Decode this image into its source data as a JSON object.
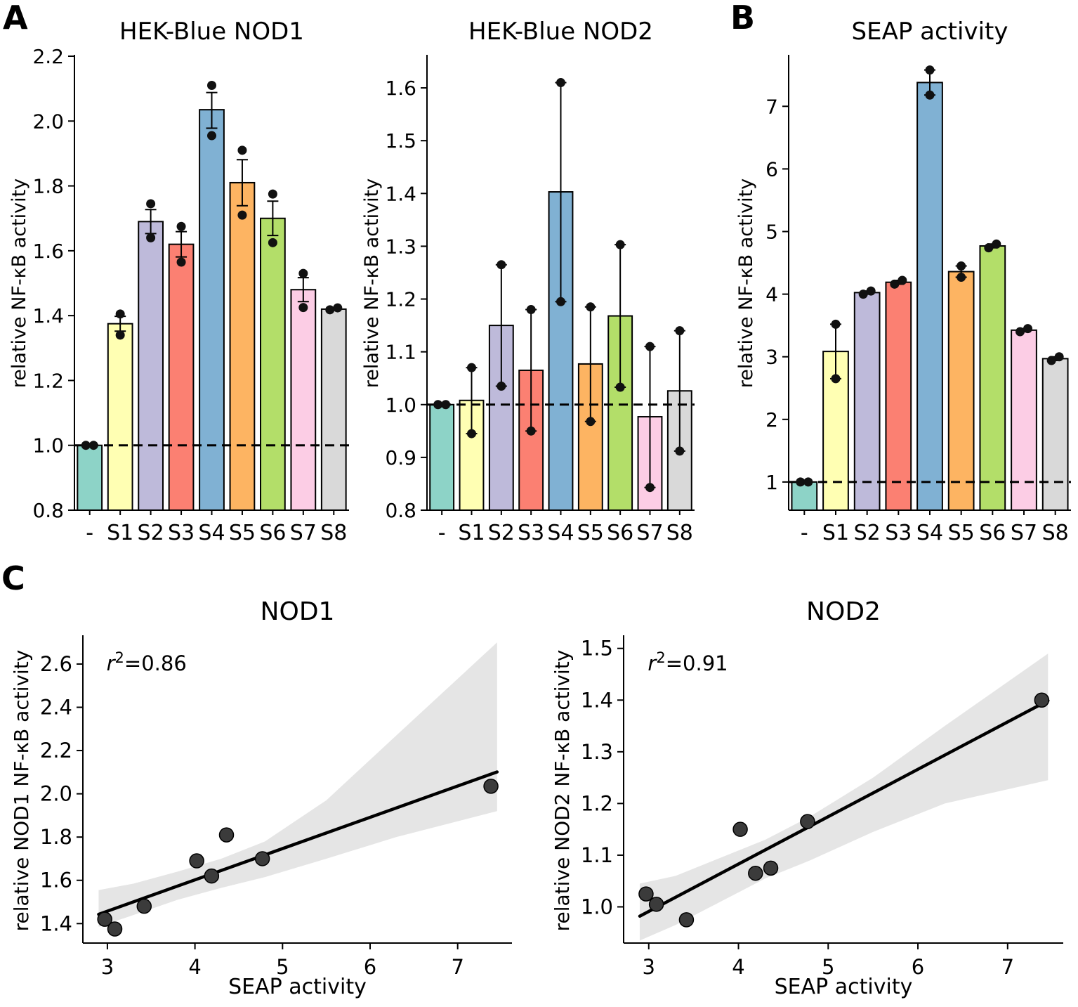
{
  "panels": {
    "a": "A",
    "b": "B",
    "c": "C"
  },
  "palette": [
    "#8dd3c7",
    "#ffffb3",
    "#bebada",
    "#fb8072",
    "#80b1d3",
    "#fdb462",
    "#b3de69",
    "#fccde5",
    "#d9d9d9"
  ],
  "chart_data": [
    {
      "id": "nod1_bar",
      "type": "bar",
      "title": "HEK-Blue NOD1",
      "ylabel": "relative NF-κB activity",
      "categories": [
        "-",
        "S1",
        "S2",
        "S3",
        "S4",
        "S5",
        "S6",
        "S7",
        "S8"
      ],
      "values": [
        1.0,
        1.375,
        1.69,
        1.62,
        2.035,
        1.81,
        1.7,
        1.48,
        1.42
      ],
      "points": [
        [
          1.0,
          1.0
        ],
        [
          1.34,
          1.405
        ],
        [
          1.64,
          1.745
        ],
        [
          1.565,
          1.675
        ],
        [
          1.955,
          2.11
        ],
        [
          1.71,
          1.91
        ],
        [
          1.625,
          1.775
        ],
        [
          1.425,
          1.53
        ],
        [
          1.418,
          1.424
        ]
      ],
      "errors": [
        [
          1.0,
          1.0
        ],
        [
          1.352,
          1.398
        ],
        [
          1.653,
          1.727
        ],
        [
          1.581,
          1.659
        ],
        [
          1.978,
          2.088
        ],
        [
          1.739,
          1.881
        ],
        [
          1.647,
          1.753
        ],
        [
          1.443,
          1.517
        ],
        [
          1.419,
          1.423
        ]
      ],
      "ylim": [
        0.8,
        2.2
      ],
      "yticks": [
        0.8,
        1.0,
        1.2,
        1.4,
        1.6,
        1.8,
        2.0,
        2.2
      ],
      "ytick_labels": [
        "0.8",
        "1.0",
        "1.2",
        "1.4",
        "1.6",
        "1.8",
        "2.0",
        "2.2"
      ],
      "ref_line": 1.0,
      "grid": false
    },
    {
      "id": "nod2_bar",
      "type": "bar",
      "title": "HEK-Blue NOD2",
      "ylabel": "relative NF-κB activity",
      "categories": [
        "-",
        "S1",
        "S2",
        "S3",
        "S4",
        "S5",
        "S6",
        "S7",
        "S8"
      ],
      "values": [
        1.0,
        1.008,
        1.15,
        1.065,
        1.403,
        1.077,
        1.168,
        0.977,
        1.026
      ],
      "points": [
        [
          1.0,
          1.0
        ],
        [
          0.945,
          1.07
        ],
        [
          1.035,
          1.265
        ],
        [
          0.95,
          1.18
        ],
        [
          1.195,
          1.61
        ],
        [
          0.968,
          1.185
        ],
        [
          1.033,
          1.303
        ],
        [
          0.843,
          1.11
        ],
        [
          0.912,
          1.14
        ]
      ],
      "errors": [
        [
          1.0,
          1.0
        ],
        [
          0.945,
          1.07
        ],
        [
          1.035,
          1.265
        ],
        [
          0.95,
          1.18
        ],
        [
          1.195,
          1.61
        ],
        [
          0.968,
          1.185
        ],
        [
          1.033,
          1.303
        ],
        [
          0.843,
          1.11
        ],
        [
          0.912,
          1.14
        ]
      ],
      "ylim": [
        0.8,
        1.66
      ],
      "yticks": [
        0.8,
        0.9,
        1.0,
        1.1,
        1.2,
        1.3,
        1.4,
        1.5,
        1.6
      ],
      "ytick_labels": [
        "0.8",
        "0.9",
        "1.0",
        "1.1",
        "1.2",
        "1.3",
        "1.4",
        "1.5",
        "1.6"
      ],
      "ref_line": 1.0,
      "grid": false
    },
    {
      "id": "seap_bar",
      "type": "bar",
      "title": "SEAP activity",
      "ylabel": "relative NF-κB activity",
      "categories": [
        "-",
        "S1",
        "S2",
        "S3",
        "S4",
        "S5",
        "S6",
        "S7",
        "S8"
      ],
      "values": [
        1.0,
        3.085,
        4.025,
        4.19,
        7.38,
        4.36,
        4.77,
        3.425,
        2.97
      ],
      "points": [
        [
          1.0,
          1.0
        ],
        [
          2.65,
          3.52
        ],
        [
          4.0,
          4.05
        ],
        [
          4.16,
          4.22
        ],
        [
          7.18,
          7.58
        ],
        [
          4.27,
          4.45
        ],
        [
          4.74,
          4.8
        ],
        [
          3.4,
          3.45
        ],
        [
          2.94,
          3.0
        ]
      ],
      "errors": [
        [
          1.0,
          1.0
        ],
        [
          2.65,
          3.52
        ],
        [
          4.0,
          4.05
        ],
        [
          4.16,
          4.22
        ],
        [
          7.18,
          7.58
        ],
        [
          4.27,
          4.45
        ],
        [
          4.74,
          4.8
        ],
        [
          3.4,
          3.45
        ],
        [
          2.94,
          3.0
        ]
      ],
      "ylim": [
        0.55,
        7.8
      ],
      "yticks": [
        1,
        2,
        3,
        4,
        5,
        6,
        7
      ],
      "ytick_labels": [
        "1",
        "2",
        "3",
        "4",
        "5",
        "6",
        "7"
      ],
      "ref_line": 1.0,
      "grid": false
    },
    {
      "id": "nod1_scatter",
      "type": "scatter",
      "title": "NOD1",
      "xlabel": "SEAP activity",
      "ylabel": "relative NOD1 NF-κB activity",
      "r2": "0.86",
      "x": [
        2.97,
        3.085,
        3.42,
        4.02,
        4.19,
        4.36,
        4.77,
        7.38
      ],
      "y": [
        1.42,
        1.375,
        1.48,
        1.69,
        1.62,
        1.81,
        1.7,
        2.035
      ],
      "line": {
        "x": [
          2.9,
          7.45
        ],
        "y": [
          1.443,
          2.101
        ]
      },
      "band": {
        "x": [
          2.9,
          3.3,
          3.8,
          4.3,
          4.8,
          5.5,
          6.3,
          7.45
        ],
        "upper": [
          1.555,
          1.585,
          1.64,
          1.7,
          1.78,
          1.97,
          2.27,
          2.7
        ],
        "lower": [
          1.385,
          1.44,
          1.51,
          1.565,
          1.615,
          1.7,
          1.8,
          1.92
        ]
      },
      "xlim": [
        2.72,
        7.62
      ],
      "ylim": [
        1.31,
        2.72
      ],
      "xticks": [
        3,
        4,
        5,
        6,
        7
      ],
      "xtick_labels": [
        "3",
        "4",
        "5",
        "6",
        "7"
      ],
      "yticks": [
        1.4,
        1.6,
        1.8,
        2.0,
        2.2,
        2.4,
        2.6
      ],
      "ytick_labels": [
        "1.4",
        "1.6",
        "1.8",
        "2.0",
        "2.2",
        "2.4",
        "2.6"
      ],
      "legend": "none",
      "grid": false
    },
    {
      "id": "nod2_scatter",
      "type": "scatter",
      "title": "NOD2",
      "xlabel": "SEAP activity",
      "ylabel": "relative NOD2 NF-κB activity",
      "r2": "0.91",
      "x": [
        2.97,
        3.085,
        3.42,
        4.02,
        4.19,
        4.36,
        4.77,
        7.38
      ],
      "y": [
        1.025,
        1.005,
        0.975,
        1.15,
        1.065,
        1.075,
        1.165,
        1.4
      ],
      "line": {
        "x": [
          2.9,
          7.45
        ],
        "y": [
          0.982,
          1.399
        ]
      },
      "band": {
        "x": [
          2.9,
          3.3,
          3.8,
          4.3,
          4.8,
          5.5,
          6.3,
          7.45
        ],
        "upper": [
          1.045,
          1.06,
          1.095,
          1.13,
          1.175,
          1.25,
          1.35,
          1.49
        ],
        "lower": [
          0.935,
          0.965,
          1.01,
          1.055,
          1.09,
          1.145,
          1.2,
          1.245
        ]
      },
      "xlim": [
        2.72,
        7.62
      ],
      "ylim": [
        0.93,
        1.52
      ],
      "xticks": [
        3,
        4,
        5,
        6,
        7
      ],
      "xtick_labels": [
        "3",
        "4",
        "5",
        "6",
        "7"
      ],
      "yticks": [
        1.0,
        1.1,
        1.2,
        1.3,
        1.4,
        1.5
      ],
      "ytick_labels": [
        "1.0",
        "1.1",
        "1.2",
        "1.3",
        "1.4",
        "1.5"
      ],
      "legend": "none",
      "grid": false
    }
  ]
}
